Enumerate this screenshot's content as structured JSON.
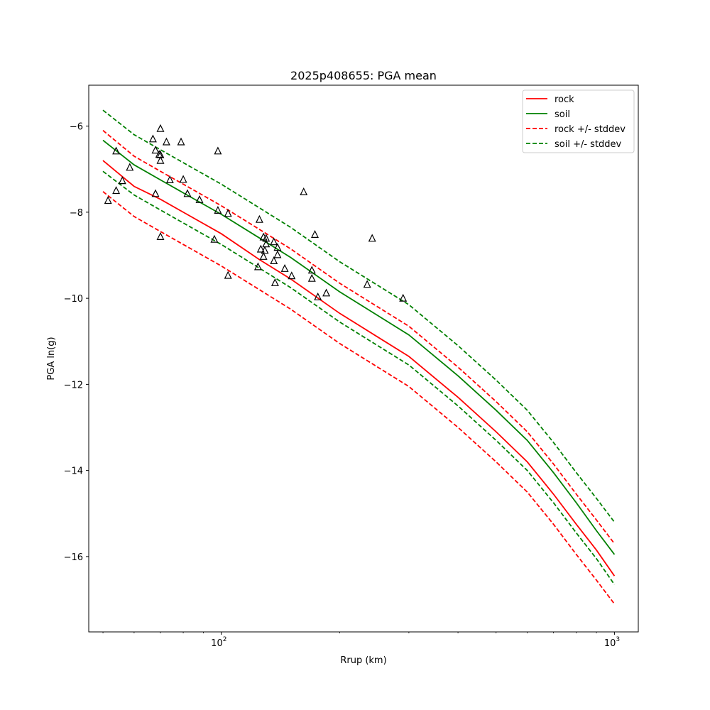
{
  "chart_data": {
    "type": "scatter",
    "title": "2025p408655: PGA mean",
    "xlabel": "Rrup (km)",
    "ylabel": "PGA ln(g)",
    "x_scale": "log",
    "xlim": [
      46,
      1150
    ],
    "ylim": [
      -17.75,
      -5.05
    ],
    "x_major_ticks": [
      100,
      1000
    ],
    "x_major_tick_labels": [
      "10",
      "10"
    ],
    "x_tick_exponents": [
      "2",
      "3"
    ],
    "y_ticks": [
      -16,
      -14,
      -12,
      -10,
      -8,
      -6
    ],
    "y_tick_labels": [
      "−16",
      "−14",
      "−12",
      "−10",
      "−8",
      "−6"
    ],
    "grid": false,
    "legend_position": "top-right",
    "colors": {
      "rock": "#ff0000",
      "soil": "#008000",
      "points": "#000000"
    },
    "series": [
      {
        "name": "rock",
        "style": "solid",
        "color": "#ff0000",
        "x": [
          50,
          60,
          70,
          80,
          100,
          125,
          150,
          200,
          250,
          300,
          400,
          500,
          600,
          700,
          800,
          900,
          1000
        ],
        "y": [
          -6.8,
          -7.4,
          -7.7,
          -8.0,
          -8.5,
          -9.1,
          -9.55,
          -10.35,
          -10.9,
          -11.35,
          -12.3,
          -13.1,
          -13.8,
          -14.55,
          -15.25,
          -15.85,
          -16.45
        ]
      },
      {
        "name": "soil",
        "style": "solid",
        "color": "#008000",
        "x": [
          50,
          60,
          70,
          80,
          100,
          125,
          150,
          200,
          250,
          300,
          400,
          500,
          600,
          700,
          800,
          900,
          1000
        ],
        "y": [
          -6.33,
          -6.9,
          -7.25,
          -7.55,
          -8.05,
          -8.6,
          -9.05,
          -9.85,
          -10.4,
          -10.85,
          -11.8,
          -12.6,
          -13.3,
          -14.05,
          -14.75,
          -15.4,
          -15.95
        ]
      },
      {
        "name": "rock +/- stddev",
        "style": "dashed",
        "color": "#ff0000",
        "x": [
          50,
          60,
          70,
          80,
          100,
          125,
          150,
          200,
          250,
          300,
          400,
          500,
          600,
          700,
          800,
          900,
          1000
        ],
        "y": [
          -6.1,
          -6.7,
          -7.05,
          -7.35,
          -7.85,
          -8.4,
          -8.85,
          -9.65,
          -10.2,
          -10.65,
          -11.6,
          -12.4,
          -13.1,
          -13.85,
          -14.55,
          -15.15,
          -15.7
        ]
      },
      {
        "name": "",
        "style": "dashed",
        "color": "#ff0000",
        "x": [
          50,
          60,
          70,
          80,
          100,
          125,
          150,
          200,
          250,
          300,
          400,
          500,
          600,
          700,
          800,
          900,
          1000
        ],
        "y": [
          -7.52,
          -8.1,
          -8.45,
          -8.75,
          -9.25,
          -9.8,
          -10.25,
          -11.05,
          -11.6,
          -12.05,
          -13.0,
          -13.8,
          -14.5,
          -15.25,
          -15.95,
          -16.55,
          -17.1
        ]
      },
      {
        "name": "soil +/- stddev",
        "style": "dashed",
        "color": "#008000",
        "x": [
          50,
          60,
          70,
          80,
          100,
          125,
          150,
          200,
          250,
          300,
          400,
          500,
          600,
          700,
          800,
          900,
          1000
        ],
        "y": [
          -5.63,
          -6.2,
          -6.55,
          -6.85,
          -7.35,
          -7.9,
          -8.35,
          -9.15,
          -9.7,
          -10.15,
          -11.1,
          -11.9,
          -12.6,
          -13.35,
          -14.05,
          -14.65,
          -15.2
        ]
      },
      {
        "name": "",
        "style": "dashed",
        "color": "#008000",
        "x": [
          50,
          60,
          70,
          80,
          100,
          125,
          150,
          200,
          250,
          300,
          400,
          500,
          600,
          700,
          800,
          900,
          1000
        ],
        "y": [
          -7.05,
          -7.6,
          -7.95,
          -8.25,
          -8.75,
          -9.3,
          -9.75,
          -10.55,
          -11.1,
          -11.55,
          -12.5,
          -13.3,
          -14.0,
          -14.75,
          -15.45,
          -16.05,
          -16.65
        ]
      }
    ],
    "points": {
      "marker": "triangle",
      "x": [
        51.5,
        54,
        54,
        56,
        58.5,
        67,
        68,
        68,
        69.5,
        70,
        70,
        70,
        70,
        72.5,
        74,
        79,
        80,
        82,
        88,
        96,
        98,
        98,
        104,
        104,
        124,
        125,
        126,
        128,
        128,
        129,
        130,
        130,
        136,
        136,
        137,
        139,
        139,
        145,
        151,
        162,
        170,
        170,
        173,
        176,
        185,
        235,
        242,
        290
      ],
      "y": [
        -7.73,
        -7.5,
        -6.58,
        -7.27,
        -6.96,
        -6.3,
        -7.57,
        -6.56,
        -6.66,
        -6.06,
        -6.8,
        -8.57,
        -6.67,
        -6.37,
        -7.25,
        -6.37,
        -7.24,
        -7.57,
        -7.71,
        -8.63,
        -6.58,
        -7.96,
        -8.03,
        -9.47,
        -9.27,
        -8.17,
        -8.86,
        -9.03,
        -8.58,
        -8.89,
        -8.74,
        -8.61,
        -8.69,
        -9.13,
        -9.64,
        -8.99,
        -8.82,
        -9.31,
        -9.48,
        -7.53,
        -9.35,
        -9.54,
        -8.52,
        -9.97,
        -9.88,
        -9.68,
        -8.61,
        -10.0
      ]
    }
  }
}
